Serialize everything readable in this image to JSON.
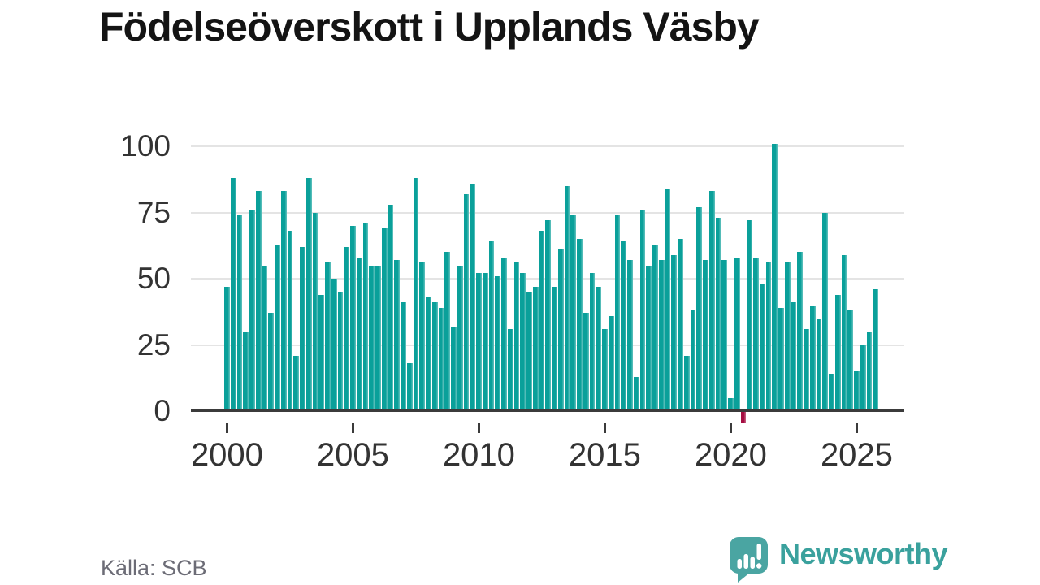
{
  "page": {
    "title": "Födelseöverskott i Upplands Väsby",
    "source": "Källa: SCB"
  },
  "branding": {
    "logo_text": "Newsworthy",
    "logo_icon": "speech-bubble-with-bar-chart-and-exclamation",
    "brand_color": "#3aa19d"
  },
  "chart_data": {
    "type": "bar",
    "title": "Födelseöverskott i Upplands Väsby",
    "x_unit": "quarter",
    "start": "2000-Q1",
    "end": "2025-Q4",
    "x_tick_labels": [
      "2000",
      "2005",
      "2010",
      "2015",
      "2020",
      "2025"
    ],
    "y_tick_labels": [
      0,
      25,
      50,
      75,
      100
    ],
    "ylim": [
      -8,
      105
    ],
    "grid": "horizontal",
    "legend": "none",
    "bar_color": "#0aa09a",
    "negative_bar_color": "#a50d41",
    "values": [
      47,
      88,
      74,
      30,
      76,
      83,
      55,
      37,
      63,
      83,
      68,
      21,
      62,
      88,
      75,
      44,
      56,
      50,
      45,
      62,
      70,
      58,
      71,
      55,
      55,
      69,
      78,
      57,
      41,
      18,
      88,
      56,
      43,
      41,
      39,
      60,
      32,
      55,
      82,
      86,
      52,
      52,
      64,
      51,
      58,
      31,
      56,
      52,
      45,
      47,
      68,
      72,
      47,
      61,
      85,
      74,
      65,
      37,
      52,
      47,
      31,
      36,
      74,
      64,
      57,
      13,
      76,
      55,
      63,
      57,
      84,
      59,
      65,
      21,
      38,
      77,
      57,
      83,
      73,
      57,
      5,
      58,
      -4,
      72,
      58,
      48,
      56,
      101,
      39,
      56,
      41,
      60,
      31,
      40,
      35,
      75,
      14,
      44,
      59,
      38,
      15,
      25,
      30,
      46
    ]
  }
}
